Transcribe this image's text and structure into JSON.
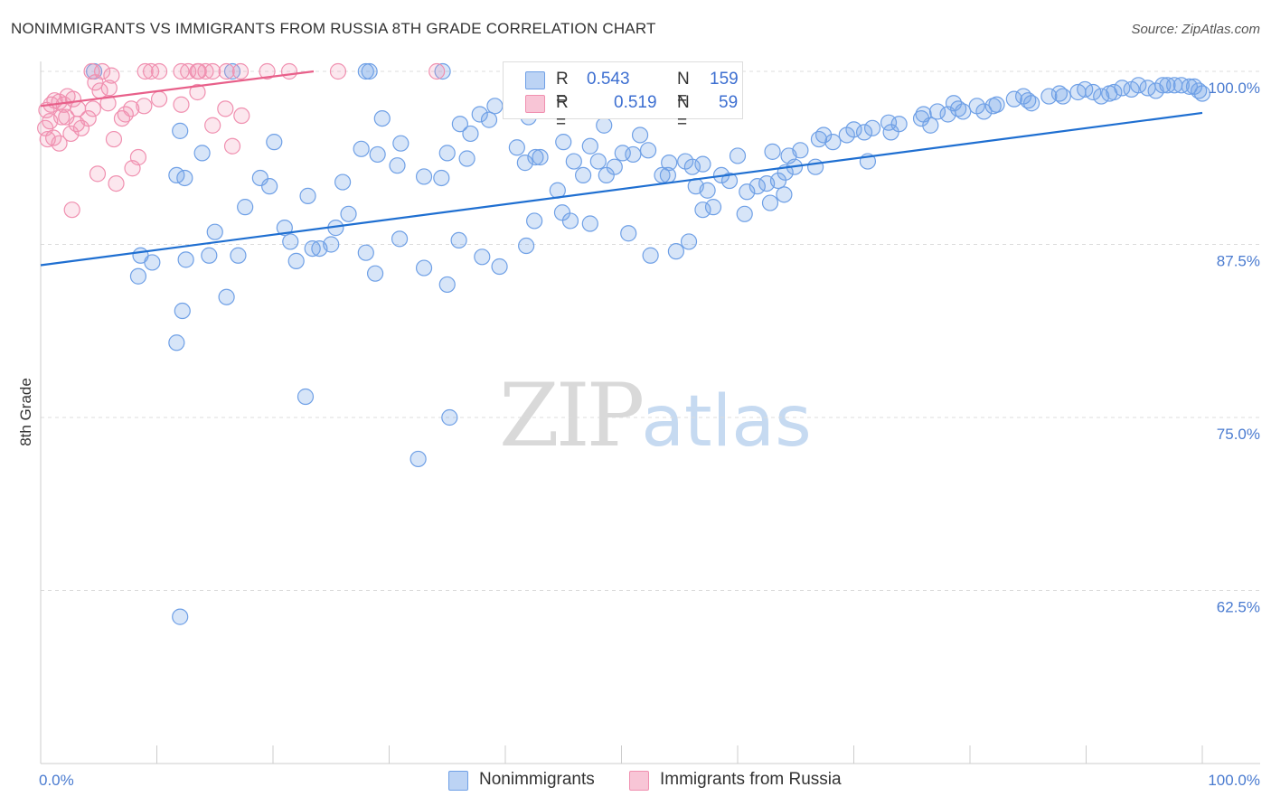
{
  "title": "NONIMMIGRANTS VS IMMIGRANTS FROM RUSSIA 8TH GRADE CORRELATION CHART",
  "source": "Source: ZipAtlas.com",
  "watermark": {
    "zip": "ZIP",
    "atlas": "atlas"
  },
  "legend": {
    "r_label": "R =",
    "n_label": "N =",
    "rows": [
      {
        "r": "0.543",
        "n": "159"
      },
      {
        "r": "0.519",
        "n": "59"
      }
    ]
  },
  "bottom_legend": [
    "Nonimmigrants",
    "Immigrants from Russia"
  ],
  "chart_data": {
    "type": "scatter",
    "title": "NONIMMIGRANTS VS IMMIGRANTS FROM RUSSIA 8TH GRADE CORRELATION CHART",
    "xlabel": "",
    "ylabel": "8th Grade",
    "xlim": [
      0,
      100
    ],
    "ylim": [
      50,
      100
    ],
    "x_tick_labels": [
      "0.0%",
      "100.0%"
    ],
    "y_ticks": [
      100,
      87.5,
      75,
      62.5
    ],
    "y_tick_labels": [
      "100.0%",
      "87.5%",
      "75.0%",
      "62.5%"
    ],
    "grid": true,
    "colors": {
      "nonimmigrants": "#6fa0e6",
      "russia": "#f090b0",
      "trend_blue": "#1f6fd1",
      "trend_pink": "#e8608a"
    },
    "series": [
      {
        "name": "Nonimmigrants",
        "R": 0.543,
        "N": 159,
        "trend": {
          "x": [
            0,
            100
          ],
          "y": [
            86.0,
            97.0
          ]
        },
        "points": [
          [
            4.6,
            100
          ],
          [
            16.5,
            100
          ],
          [
            28,
            100
          ],
          [
            28.3,
            100
          ],
          [
            34.6,
            100
          ],
          [
            12,
            95.7
          ],
          [
            18.9,
            92.3
          ],
          [
            13.9,
            94.1
          ],
          [
            11.7,
            92.5
          ],
          [
            12.4,
            92.3
          ],
          [
            20.1,
            94.9
          ],
          [
            29.4,
            96.6
          ],
          [
            27.6,
            94.4
          ],
          [
            30.7,
            93.2
          ],
          [
            34.5,
            92.3
          ],
          [
            36.7,
            93.7
          ],
          [
            41.7,
            93.4
          ],
          [
            42.6,
            93.8
          ],
          [
            36.1,
            96.2
          ],
          [
            37.8,
            96.9
          ],
          [
            38.6,
            96.5
          ],
          [
            40.5,
            97.2
          ],
          [
            39.1,
            97.5
          ],
          [
            42,
            96.7
          ],
          [
            44.5,
            91.4
          ],
          [
            45.9,
            93.5
          ],
          [
            46.7,
            92.5
          ],
          [
            48.7,
            92.5
          ],
          [
            49.4,
            93.1
          ],
          [
            47.3,
            94.6
          ],
          [
            50.1,
            94.1
          ],
          [
            48.5,
            96.1
          ],
          [
            51.6,
            95.4
          ],
          [
            52.3,
            94.3
          ],
          [
            54.1,
            93.4
          ],
          [
            53.5,
            92.5
          ],
          [
            56.4,
            91.7
          ],
          [
            57.4,
            91.4
          ],
          [
            56.1,
            93.1
          ],
          [
            55.5,
            93.5
          ],
          [
            58.6,
            92.5
          ],
          [
            59.3,
            92.1
          ],
          [
            60.8,
            91.3
          ],
          [
            61.7,
            91.7
          ],
          [
            62.5,
            91.9
          ],
          [
            63.5,
            92.1
          ],
          [
            64.1,
            92.7
          ],
          [
            64.9,
            93.1
          ],
          [
            66.7,
            93.1
          ],
          [
            64.4,
            93.9
          ],
          [
            65.4,
            94.3
          ],
          [
            67.4,
            95.4
          ],
          [
            68.2,
            94.9
          ],
          [
            69.4,
            95.4
          ],
          [
            70.9,
            95.6
          ],
          [
            71.6,
            95.9
          ],
          [
            71.2,
            93.5
          ],
          [
            73.2,
            95.6
          ],
          [
            73.9,
            96.2
          ],
          [
            75.8,
            96.6
          ],
          [
            76.6,
            96.1
          ],
          [
            77.2,
            97.1
          ],
          [
            78.1,
            96.9
          ],
          [
            79.4,
            97.1
          ],
          [
            78.6,
            97.7
          ],
          [
            80.6,
            97.5
          ],
          [
            81.2,
            97.1
          ],
          [
            82.3,
            97.6
          ],
          [
            83.8,
            98.0
          ],
          [
            84.6,
            98.2
          ],
          [
            85.3,
            97.7
          ],
          [
            86.8,
            98.2
          ],
          [
            87.7,
            98.4
          ],
          [
            89.3,
            98.5
          ],
          [
            89.9,
            98.7
          ],
          [
            90.6,
            98.5
          ],
          [
            91.3,
            98.2
          ],
          [
            92.4,
            98.5
          ],
          [
            93.1,
            98.8
          ],
          [
            93.9,
            98.7
          ],
          [
            94.5,
            99.0
          ],
          [
            95.3,
            98.8
          ],
          [
            96.6,
            99.0
          ],
          [
            97.6,
            99.0
          ],
          [
            98.2,
            99.0
          ],
          [
            98.9,
            98.9
          ],
          [
            99.3,
            98.9
          ],
          [
            99.7,
            98.6
          ],
          [
            100,
            98.4
          ],
          [
            96,
            98.6
          ],
          [
            97,
            99.0
          ],
          [
            92,
            98.4
          ],
          [
            88,
            98.2
          ],
          [
            85,
            97.9
          ],
          [
            82,
            97.5
          ],
          [
            79,
            97.3
          ],
          [
            76,
            96.9
          ],
          [
            73,
            96.3
          ],
          [
            70,
            95.8
          ],
          [
            67,
            95.1
          ],
          [
            63,
            94.2
          ],
          [
            60,
            93.9
          ],
          [
            57,
            93.3
          ],
          [
            54,
            92.5
          ],
          [
            51,
            94.0
          ],
          [
            48,
            93.5
          ],
          [
            45,
            94.9
          ],
          [
            43,
            93.8
          ],
          [
            41,
            94.5
          ],
          [
            37,
            95.5
          ],
          [
            35,
            94.1
          ],
          [
            33,
            92.4
          ],
          [
            31,
            94.8
          ],
          [
            29,
            94.0
          ],
          [
            26,
            92.0
          ],
          [
            23,
            91.0
          ],
          [
            24,
            87.2
          ],
          [
            22,
            86.3
          ],
          [
            21,
            88.7
          ],
          [
            25,
            87.5
          ],
          [
            26.5,
            89.7
          ],
          [
            17,
            86.7
          ],
          [
            14.5,
            86.7
          ],
          [
            12.5,
            86.4
          ],
          [
            15,
            88.4
          ],
          [
            9.6,
            86.2
          ],
          [
            8.6,
            86.7
          ],
          [
            8.4,
            85.2
          ],
          [
            17.6,
            90.2
          ],
          [
            19.7,
            91.7
          ],
          [
            21.5,
            87.7
          ],
          [
            28.8,
            85.4
          ],
          [
            35,
            84.6
          ],
          [
            39.5,
            85.9
          ],
          [
            41.8,
            87.4
          ],
          [
            44.9,
            89.8
          ],
          [
            45.6,
            89.2
          ],
          [
            47.3,
            89.0
          ],
          [
            50.6,
            88.3
          ],
          [
            52.5,
            86.7
          ],
          [
            54.7,
            87.0
          ],
          [
            55.8,
            87.7
          ],
          [
            57,
            90.0
          ],
          [
            57.9,
            90.2
          ],
          [
            60.6,
            89.7
          ],
          [
            62.8,
            90.5
          ],
          [
            64,
            91.1
          ],
          [
            42.5,
            89.2
          ],
          [
            38,
            86.6
          ],
          [
            36,
            87.8
          ],
          [
            33,
            85.8
          ],
          [
            30.9,
            87.9
          ],
          [
            28,
            86.9
          ],
          [
            25.4,
            88.7
          ],
          [
            23.4,
            87.2
          ],
          [
            16,
            83.7
          ],
          [
            12.2,
            82.7
          ],
          [
            11.7,
            80.4
          ],
          [
            22.8,
            76.5
          ],
          [
            35.2,
            75.0
          ],
          [
            32.5,
            72.0
          ],
          [
            12,
            60.6
          ]
        ]
      },
      {
        "name": "Immigrants from Russia",
        "R": 0.519,
        "N": 59,
        "trend": {
          "x": [
            0,
            23.5
          ],
          "y": [
            97.5,
            100.0
          ]
        },
        "points": [
          [
            4.4,
            100
          ],
          [
            5.3,
            100
          ],
          [
            6.1,
            99.7
          ],
          [
            9,
            100
          ],
          [
            9.5,
            100
          ],
          [
            10.2,
            100
          ],
          [
            12.1,
            100
          ],
          [
            12.7,
            100
          ],
          [
            13.5,
            100
          ],
          [
            13.6,
            100
          ],
          [
            14.2,
            100
          ],
          [
            14.8,
            100
          ],
          [
            16,
            100
          ],
          [
            17.2,
            100
          ],
          [
            19.5,
            100
          ],
          [
            21.4,
            100
          ],
          [
            25.6,
            100
          ],
          [
            34.1,
            100
          ],
          [
            0.5,
            97.2
          ],
          [
            0.8,
            96.4
          ],
          [
            0.9,
            97.6
          ],
          [
            1.2,
            97.9
          ],
          [
            1.6,
            97.8
          ],
          [
            2,
            97.6
          ],
          [
            2.3,
            98.2
          ],
          [
            2.8,
            98.0
          ],
          [
            3.2,
            97.3
          ],
          [
            1.8,
            96.7
          ],
          [
            0.4,
            95.9
          ],
          [
            1.1,
            95.2
          ],
          [
            1.6,
            94.8
          ],
          [
            2.2,
            96.7
          ],
          [
            2.6,
            95.5
          ],
          [
            3.1,
            96.2
          ],
          [
            3.5,
            95.9
          ],
          [
            4.1,
            96.6
          ],
          [
            4.5,
            97.3
          ],
          [
            5.1,
            98.6
          ],
          [
            5.8,
            97.7
          ],
          [
            6.3,
            95.1
          ],
          [
            7,
            96.6
          ],
          [
            7.3,
            96.9
          ],
          [
            7.8,
            97.3
          ],
          [
            8.9,
            97.5
          ],
          [
            8.4,
            93.8
          ],
          [
            7.9,
            93.0
          ],
          [
            6.5,
            91.9
          ],
          [
            4.9,
            92.6
          ],
          [
            2.7,
            90.0
          ],
          [
            10.2,
            98.0
          ],
          [
            12.1,
            97.6
          ],
          [
            13.5,
            98.5
          ],
          [
            14.8,
            96.1
          ],
          [
            15.9,
            97.3
          ],
          [
            16.5,
            94.6
          ],
          [
            17.3,
            96.8
          ],
          [
            4.7,
            99.2
          ],
          [
            5.9,
            98.8
          ],
          [
            0.6,
            95.1
          ]
        ]
      }
    ]
  }
}
